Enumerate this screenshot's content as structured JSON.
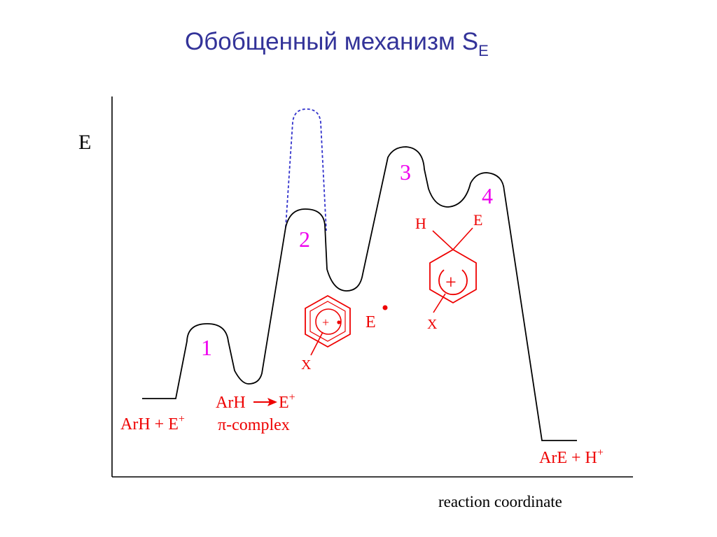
{
  "slide": {
    "title_main": "Обобщенный механизм S",
    "title_sub": "E",
    "title_color": "#333399"
  },
  "axes": {
    "y_label": "E",
    "x_label": "reaction coordinate"
  },
  "states": {
    "reactants": {
      "text": "ArH + E",
      "sup": "+"
    },
    "pi_complex_line1": {
      "left": "ArH",
      "right": "E",
      "sup": "+"
    },
    "pi_complex_line2": {
      "pi": "π",
      "text": "-complex"
    },
    "products": {
      "text": "ArE + H",
      "sup": "+"
    }
  },
  "transition_labels": [
    "1",
    "2",
    "3",
    "4"
  ],
  "structures": {
    "radical_pair": {
      "ring_charge": "+",
      "substituent": "X",
      "electrophile": "E"
    },
    "sigma_complex": {
      "charge": "+",
      "h_label": "H",
      "e_label": "E",
      "substituent": "X"
    }
  },
  "colors": {
    "profile": "#000000",
    "alt_path": "#3333cc",
    "labels": "#ee0000",
    "numbers": "#ee00ee",
    "axes": "#000000"
  }
}
